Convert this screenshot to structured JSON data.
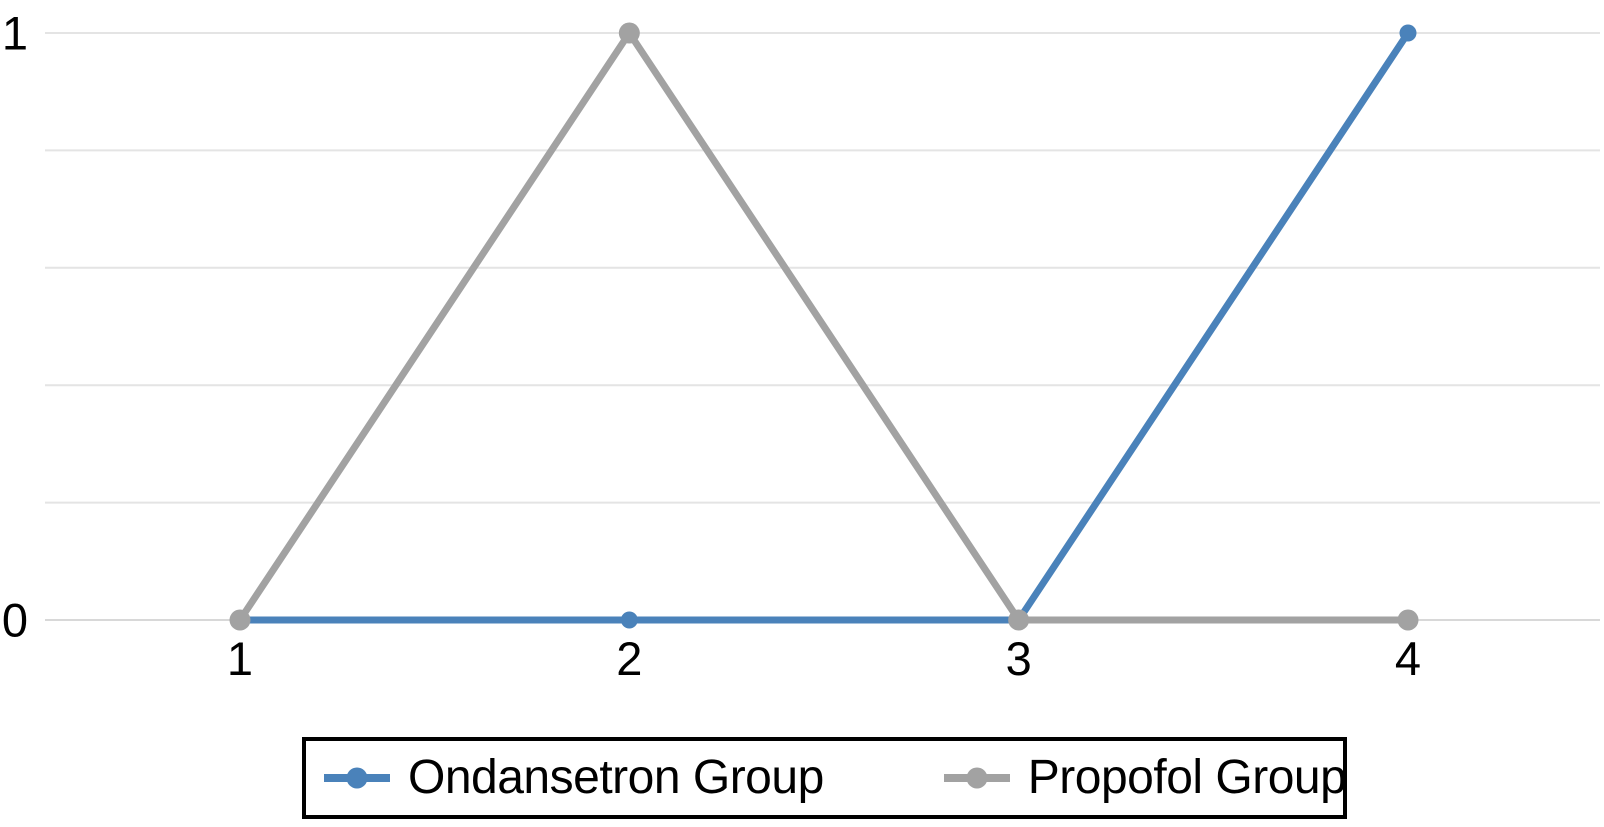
{
  "figure": {
    "background": "#ffffff"
  },
  "chart_data": {
    "type": "line",
    "x": [
      1,
      2,
      3,
      4
    ],
    "x_tick_labels": [
      "1",
      "2",
      "3",
      "4"
    ],
    "y_tick_labels": [
      "0",
      "1"
    ],
    "y_tick_values": [
      0,
      1
    ],
    "ylim": [
      0,
      1
    ],
    "gridlines_y": [
      0,
      0.2,
      0.4,
      0.6,
      0.8,
      1
    ],
    "grid_on": true,
    "series": [
      {
        "name": "Ondansetron Group",
        "color": "#4a82ba",
        "marker": "circle",
        "values": [
          0,
          0,
          0,
          1
        ]
      },
      {
        "name": "Propofol Group",
        "color": "#a2a2a2",
        "marker": "circle",
        "values": [
          0,
          1,
          0,
          0
        ]
      }
    ],
    "legend": {
      "position": "bottom-center",
      "border_color": "#000000",
      "entries": [
        "Ondansetron Group",
        "Propofol Group"
      ]
    },
    "colors": {
      "grid": "#e4e4e4",
      "baseline": "#d8d8d8",
      "tick_label": "#000000"
    },
    "title": "",
    "xlabel": "",
    "ylabel": ""
  }
}
